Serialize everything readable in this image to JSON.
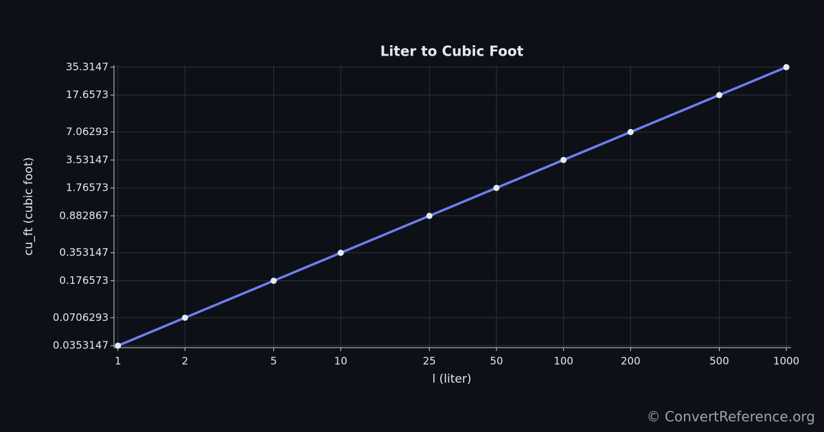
{
  "chart_data": {
    "type": "line",
    "title": "Liter to Cubic Foot",
    "x_label": "l (liter)",
    "y_label": "cu_ft (cubic foot)",
    "x": [
      1,
      2,
      5,
      10,
      25,
      50,
      100,
      200,
      500,
      1000
    ],
    "values": [
      0.0353147,
      0.0706293,
      0.176573,
      0.353147,
      0.882867,
      1.76573,
      3.53147,
      7.06293,
      17.6573,
      35.3147
    ],
    "color": "#6f7ff0",
    "marker_color": "#e8ecf2",
    "xlog": true,
    "ylog": true,
    "grid": true,
    "xlim": [
      0.96,
      1050
    ],
    "ylim": [
      0.0336,
      37.1
    ],
    "xticks": [
      1,
      2,
      5,
      10,
      25,
      50,
      100,
      200,
      500,
      1000
    ],
    "yticks": [
      0.0353147,
      0.0706293,
      0.176573,
      0.353147,
      0.882867,
      1.76573,
      3.53147,
      7.06293,
      17.6573,
      35.3147
    ]
  },
  "watermark": "© ConvertReference.org"
}
